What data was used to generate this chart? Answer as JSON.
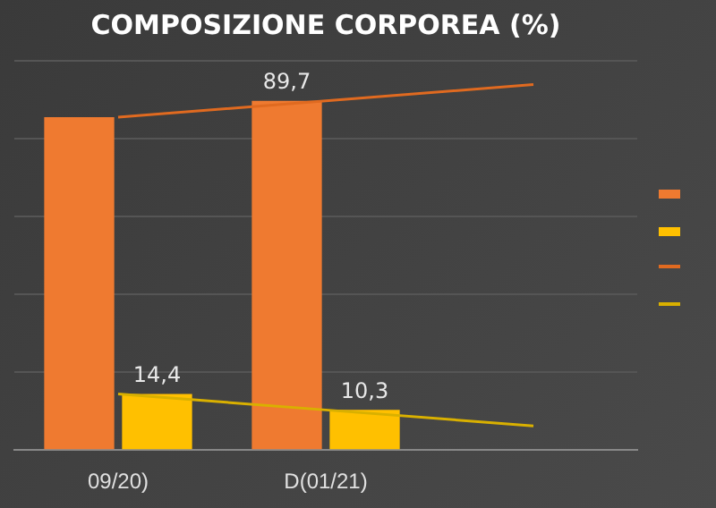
{
  "chart_data": {
    "type": "bar",
    "title": "COMPOSIZIONE CORPOREA (%)",
    "categories": [
      "09/20)",
      "D(01/21)",
      null
    ],
    "series": [
      {
        "color": "#ef7a30",
        "values": [
          85.5,
          89.7,
          null
        ],
        "value_labels": [
          null,
          "89,7",
          null
        ]
      },
      {
        "color": "#ffc000",
        "values": [
          14.4,
          10.3,
          null
        ],
        "value_labels": [
          "14,4",
          "10,3",
          null
        ]
      },
      {
        "type": "line",
        "color": "#e06a20",
        "values": [
          85.5,
          89.7,
          93.9
        ]
      },
      {
        "type": "line",
        "color": "#d9b000",
        "values": [
          14.4,
          10.3,
          6.2
        ]
      }
    ],
    "ylim": [
      0,
      100
    ],
    "yticks": [
      {
        "value": 0,
        "label": null
      },
      {
        "value": 20,
        "label": null
      },
      {
        "value": 40,
        "label": null
      },
      {
        "value": 60,
        "label": null
      },
      {
        "value": 80,
        "label": null
      },
      {
        "value": 100,
        "label": null
      }
    ],
    "tick_labels": "x",
    "grid": "y",
    "marker": "none"
  }
}
